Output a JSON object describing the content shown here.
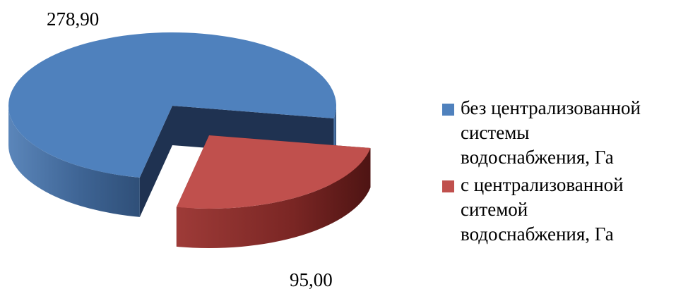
{
  "chart_data": {
    "type": "pie",
    "style": "3d-exploded",
    "slices": [
      {
        "label": "без централизованной системы водоснабжения, Га",
        "value": 278.9,
        "value_text": "278,90",
        "color": "#4F81BD"
      },
      {
        "label": "с централизованной ситемой водоснабжения, Га",
        "value": 95.0,
        "value_text": "95,00",
        "color": "#C0504D"
      }
    ],
    "legend_position": "right"
  },
  "legend": {
    "entries": [
      {
        "lines": [
          "без централизованной",
          "системы",
          "водоснабжения, Га"
        ]
      },
      {
        "lines": [
          "с централизованной",
          "ситемой",
          "водоснабжения, Га"
        ]
      }
    ]
  }
}
